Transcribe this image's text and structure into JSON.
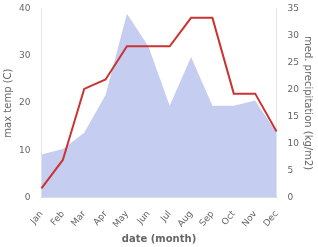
{
  "chart_data": {
    "type": "line",
    "categories": [
      "Jan",
      "Feb",
      "Mar",
      "Apr",
      "May",
      "Jun",
      "Jul",
      "Aug",
      "Sep",
      "Oct",
      "Nov",
      "Dec"
    ],
    "series": [
      {
        "type": "area",
        "axis": "y2",
        "color": "#c5cef0",
        "values": [
          8,
          9,
          12,
          19,
          34,
          28,
          17,
          26,
          17,
          17,
          18,
          12
        ]
      },
      {
        "type": "line",
        "color": "#cc3333",
        "values": [
          2,
          8,
          23,
          25,
          32,
          32,
          32,
          38,
          38,
          22,
          22,
          14
        ]
      }
    ],
    "xlabel": "date (month)",
    "ylabel": "max temp (C)",
    "y2label": "med. precipitation (kg/m2)",
    "ylim": [
      0,
      40
    ],
    "yticks": [
      0,
      10,
      20,
      30,
      40
    ],
    "y2lim": [
      0,
      35
    ],
    "y2ticks": [
      0,
      5,
      10,
      15,
      20,
      25,
      30,
      35
    ],
    "grid": false
  }
}
